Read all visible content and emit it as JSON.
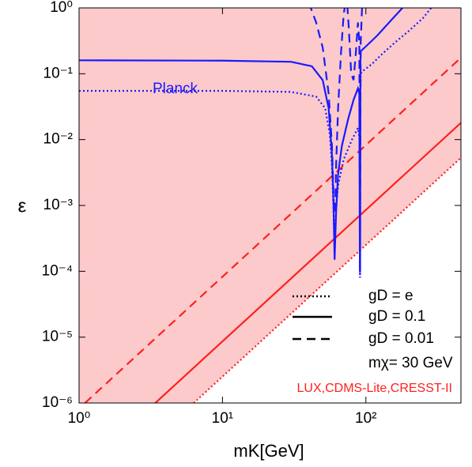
{
  "chart_data": {
    "type": "line",
    "x_label": "mK[GeV]",
    "y_label": "ε",
    "xscale": "log",
    "yscale": "log",
    "xlim": [
      1,
      460
    ],
    "ylim": [
      1e-06,
      1
    ],
    "xticks": [
      {
        "value": 1,
        "label": "10⁰"
      },
      {
        "value": 10,
        "label": "10¹"
      },
      {
        "value": 100,
        "label": "10²"
      }
    ],
    "yticks": [
      {
        "value": 1e-06,
        "label": "10⁻⁶"
      },
      {
        "value": 1e-05,
        "label": "10⁻⁵"
      },
      {
        "value": 0.0001,
        "label": "10⁻⁴"
      },
      {
        "value": 0.001,
        "label": "10⁻³"
      },
      {
        "value": 0.01,
        "label": "10⁻²"
      },
      {
        "value": 0.1,
        "label": "10⁻¹"
      },
      {
        "value": 1,
        "label": "10⁰"
      }
    ],
    "series": [
      {
        "color": "#ff2020",
        "dash": "dotted",
        "fill_above": "#fccaca",
        "x": [
          6.3,
          460
        ],
        "values": [
          1e-06,
          0.0053
        ]
      },
      {
        "color": "#ff2020",
        "dash": "solid",
        "x": [
          3.4,
          460
        ],
        "values": [
          1e-06,
          0.018
        ]
      },
      {
        "color": "#ff2020",
        "dash": "dashed",
        "x": [
          1.1,
          460
        ],
        "values": [
          1e-06,
          0.175
        ]
      },
      {
        "color": "#1a1aff",
        "dash": "dotted",
        "x": [
          1,
          10,
          30,
          45,
          52,
          56,
          58,
          59.5,
          60.5,
          62,
          64,
          70,
          80,
          88,
          90.5,
          91,
          91.5,
          92,
          95,
          110,
          130,
          160,
          200,
          250,
          285
        ],
        "values": [
          0.055,
          0.055,
          0.053,
          0.045,
          0.03,
          0.012,
          0.004,
          0.0008,
          0.0002,
          0.0009,
          0.002,
          0.005,
          0.01,
          0.015,
          0.01,
          8e-05,
          0.05,
          0.1,
          0.11,
          0.14,
          0.2,
          0.3,
          0.45,
          0.7,
          1
        ]
      },
      {
        "color": "#1a1aff",
        "dash": "solid",
        "x": [
          1,
          10,
          30,
          42,
          50,
          55,
          58,
          59.5,
          60.5,
          62,
          64,
          68,
          75,
          82,
          88,
          90,
          90.8,
          91.2,
          91.6,
          92,
          100,
          120,
          150,
          180
        ],
        "values": [
          0.16,
          0.158,
          0.152,
          0.13,
          0.08,
          0.03,
          0.006,
          0.001,
          0.00015,
          0.0008,
          0.003,
          0.008,
          0.02,
          0.04,
          0.06,
          0.05,
          0.0001,
          0.0001,
          0.15,
          0.22,
          0.26,
          0.38,
          0.65,
          1
        ]
      },
      {
        "color": "#1a1aff",
        "dash": "dashed",
        "x": [
          40,
          45,
          50,
          55,
          58,
          60,
          61,
          62,
          64,
          67,
          70,
          72,
          74,
          76,
          79,
          82,
          85,
          88,
          90,
          91,
          92,
          94,
          97
        ],
        "values": [
          1.2,
          0.6,
          0.25,
          0.05,
          0.008,
          0.0008,
          0.0008,
          0.004,
          0.03,
          0.2,
          0.8,
          1.2,
          1.2,
          0.5,
          0.1,
          0.08,
          0.2,
          0.6,
          0.3,
          0.0002,
          0.3,
          1,
          1.2
        ]
      }
    ],
    "legend": [
      {
        "name": "gD = e",
        "dash": "dotted"
      },
      {
        "name": "gD = 0.1",
        "dash": "solid"
      },
      {
        "name": "gD = 0.01",
        "dash": "dashed"
      }
    ],
    "annotations": [
      {
        "text": "Planck",
        "color": "#1a1aff"
      },
      {
        "text": "mχ= 30 GeV",
        "color": "#000000"
      },
      {
        "text": "LUX,CDMS-Lite,CRESST-II",
        "color": "#ff2020"
      }
    ]
  }
}
